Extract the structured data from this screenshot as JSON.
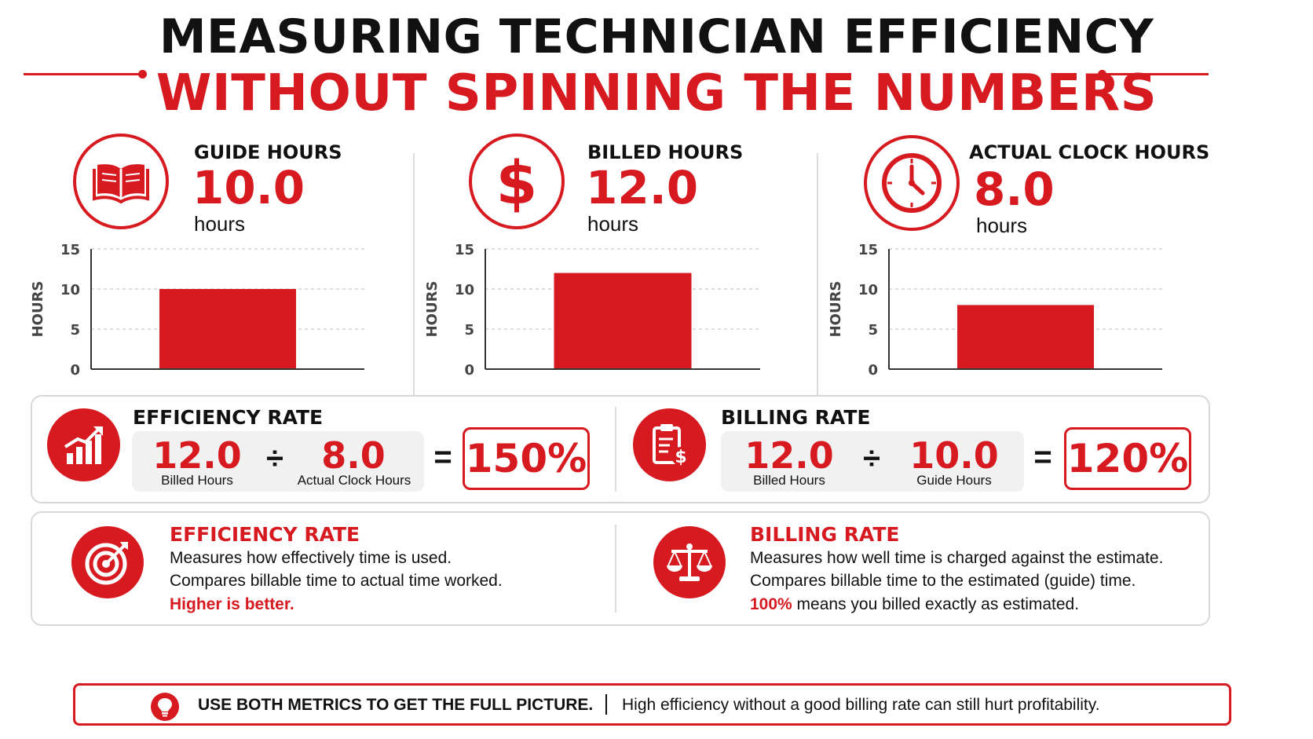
{
  "title": {
    "line1": "MEASURING TECHNICIAN EFFICIENCY",
    "line2": "WITHOUT SPINNING THE NUMBERS"
  },
  "colors": {
    "accent": "#d71920",
    "text": "#111111",
    "panel_border": "#d8d8d8",
    "formula_bg": "#f1f1f1"
  },
  "stats": [
    {
      "label": "GUIDE HOURS",
      "value": "10.0",
      "unit": "hours",
      "icon": "open-book-icon"
    },
    {
      "label": "BILLED HOURS",
      "value": "12.0",
      "unit": "hours",
      "icon": "dollar-icon"
    },
    {
      "label": "ACTUAL CLOCK HOURS",
      "value": "8.0",
      "unit": "hours",
      "icon": "clock-icon"
    }
  ],
  "chart_data": [
    {
      "type": "bar",
      "categories": [
        ""
      ],
      "values": [
        10.0
      ],
      "ylabel": "HOURS",
      "ylim": [
        0,
        15
      ],
      "yticks": [
        "0",
        "5",
        "10",
        "15"
      ],
      "grid": true,
      "color": "#d71920"
    },
    {
      "type": "bar",
      "categories": [
        ""
      ],
      "values": [
        12.0
      ],
      "ylabel": "HOURS",
      "ylim": [
        0,
        15
      ],
      "yticks": [
        "0",
        "5",
        "10",
        "15"
      ],
      "grid": true,
      "color": "#d71920"
    },
    {
      "type": "bar",
      "categories": [
        ""
      ],
      "values": [
        8.0
      ],
      "ylabel": "HOURS",
      "ylim": [
        0,
        15
      ],
      "yticks": [
        "0",
        "5",
        "10",
        "15"
      ],
      "grid": true,
      "color": "#d71920"
    }
  ],
  "rates": {
    "efficiency": {
      "title": "EFFICIENCY RATE",
      "num1": "12.0",
      "cap1": "Billed Hours",
      "op": "÷",
      "num2": "8.0",
      "cap2": "Actual Clock Hours",
      "eq": "=",
      "result": "150%",
      "icon": "growth-chart-icon"
    },
    "billing": {
      "title": "BILLING RATE",
      "num1": "12.0",
      "cap1": "Billed Hours",
      "op": "÷",
      "num2": "10.0",
      "cap2": "Guide Hours",
      "eq": "=",
      "result": "120%",
      "icon": "invoice-dollar-icon"
    }
  },
  "descriptions": {
    "efficiency": {
      "title": "EFFICIENCY RATE",
      "line1": "Measures how effectively time is used.",
      "line2": "Compares billable time to actual time worked.",
      "line3": "Higher is better.",
      "icon": "target-icon"
    },
    "billing": {
      "title": "BILLING RATE",
      "line1": "Measures how well time is charged against the estimate.",
      "line2": "Compares billable time to the estimated (guide) time.",
      "line3_strong": "100%",
      "line3_rest": " means you billed exactly as estimated.",
      "icon": "scales-icon"
    }
  },
  "banner": {
    "bold": "USE BOTH METRICS TO GET THE FULL PICTURE.",
    "separator": "|",
    "text": "High efficiency without a good billing rate can still hurt profitability.",
    "icon": "lightbulb-icon"
  }
}
